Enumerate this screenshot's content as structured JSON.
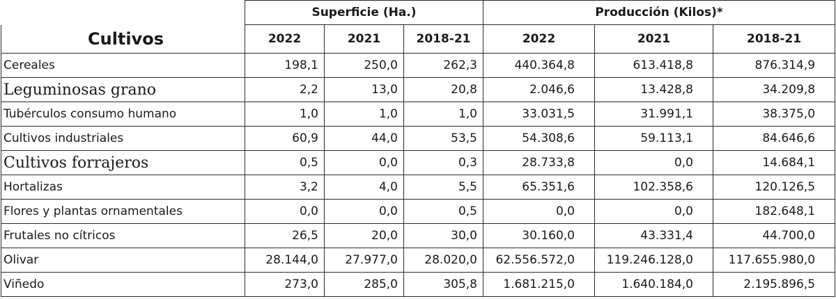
{
  "header": {
    "group_surface": "Superficie (Ha.)",
    "group_production": "Producción (Kilos)*",
    "crops_label": "Cultivos",
    "years": [
      "2022",
      "2021",
      "2018-21"
    ]
  },
  "rows": [
    {
      "label": "Cereales",
      "serif": false,
      "values": [
        "198,1",
        "250,0",
        "262,3",
        "440.364,8",
        "613.418,8",
        "876.314,9"
      ]
    },
    {
      "label": "Leguminosas grano",
      "serif": true,
      "values": [
        "2,2",
        "13,0",
        "20,8",
        "2.046,6",
        "13.428,8",
        "34.209,8"
      ]
    },
    {
      "label": "Tubérculos consumo humano",
      "serif": false,
      "values": [
        "1,0",
        "1,0",
        "1,0",
        "33.031,5",
        "31.991,1",
        "38.375,0"
      ]
    },
    {
      "label": "Cultivos industriales",
      "serif": false,
      "values": [
        "60,9",
        "44,0",
        "53,5",
        "54.308,6",
        "59.113,1",
        "84.646,6"
      ]
    },
    {
      "label": "Cultivos forrajeros",
      "serif": true,
      "values": [
        "0,5",
        "0,0",
        "0,3",
        "28.733,8",
        "0,0",
        "14.684,1"
      ]
    },
    {
      "label": "Hortalizas",
      "serif": false,
      "values": [
        "3,2",
        "4,0",
        "5,5",
        "65.351,6",
        "102.358,6",
        "120.126,5"
      ]
    },
    {
      "label": "Flores y plantas ornamentales",
      "serif": false,
      "values": [
        "0,0",
        "0,0",
        "0,5",
        "0,0",
        "0,0",
        "182.648,1"
      ]
    },
    {
      "label": "Frutales no cítricos",
      "serif": false,
      "values": [
        "26,5",
        "20,0",
        "30,0",
        "30.160,0",
        "43.331,4",
        "44.700,0"
      ]
    },
    {
      "label": "Olivar",
      "serif": false,
      "values": [
        "28.144,0",
        "27.977,0",
        "28.020,0",
        "62.556.572,0",
        "119.246.128,0",
        "117.655.980,0"
      ]
    },
    {
      "label": "Viñedo",
      "serif": false,
      "values": [
        "273,0",
        "285,0",
        "305,8",
        "1.681.215,0",
        "1.640.184,0",
        "2.195.896,5"
      ]
    }
  ]
}
